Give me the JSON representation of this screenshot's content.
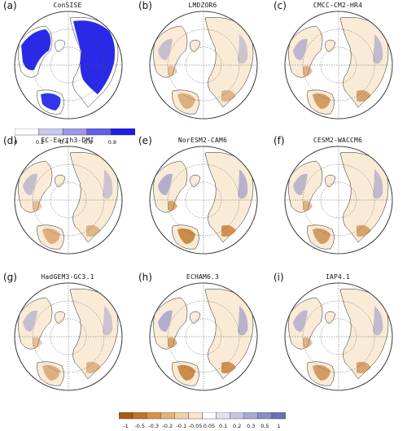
{
  "panels": [
    {
      "label": "(a)",
      "title": "ConSISE",
      "style": "snow"
    },
    {
      "label": "(b)",
      "title": "LMDZOR6",
      "style": "light"
    },
    {
      "label": "(c)",
      "title": "CMCC-CM2-HR4",
      "style": "medium"
    },
    {
      "label": "(d)",
      "title": "EC-Earth3-DMI",
      "style": "light"
    },
    {
      "label": "(e)",
      "title": "NorESM2-CAM6",
      "style": "strong"
    },
    {
      "label": "(f)",
      "title": "CESM2-WACCM6",
      "style": "medium"
    },
    {
      "label": "(g)",
      "title": "HadGEM3-GC3.1",
      "style": "light"
    },
    {
      "label": "(h)",
      "title": "ECHAM6.3",
      "style": "strong"
    },
    {
      "label": "(i)",
      "title": "IAP4.1",
      "style": "medium"
    }
  ],
  "colorbar_snow": {
    "ticks": [
      "0",
      "0.2",
      "0.4",
      "0.6",
      "0.8"
    ],
    "colors": [
      "#ffffff",
      "#c8c8f0",
      "#9a9ae6",
      "#5f5fe8",
      "#1e1ee6"
    ]
  },
  "colorbar_diff": {
    "ticks": [
      "-1",
      "-0.5",
      "-0.3",
      "-0.2",
      "-0.1",
      "-0.05",
      "0.05",
      "0.1",
      "0.2",
      "0.3",
      "0.5",
      "1"
    ],
    "colors": [
      "#a85a14",
      "#c27326",
      "#d89446",
      "#e6b275",
      "#f1d0a8",
      "#f8e6d2",
      "#ffffff",
      "#e2e2f0",
      "#c6c6e2",
      "#a9a9d4",
      "#8c8cc4",
      "#6e6eb2"
    ]
  },
  "colors": {
    "land": "#faebd7",
    "snow": "#1e1ee6",
    "gain": "#8c8cc4",
    "loss": "#c27326"
  }
}
